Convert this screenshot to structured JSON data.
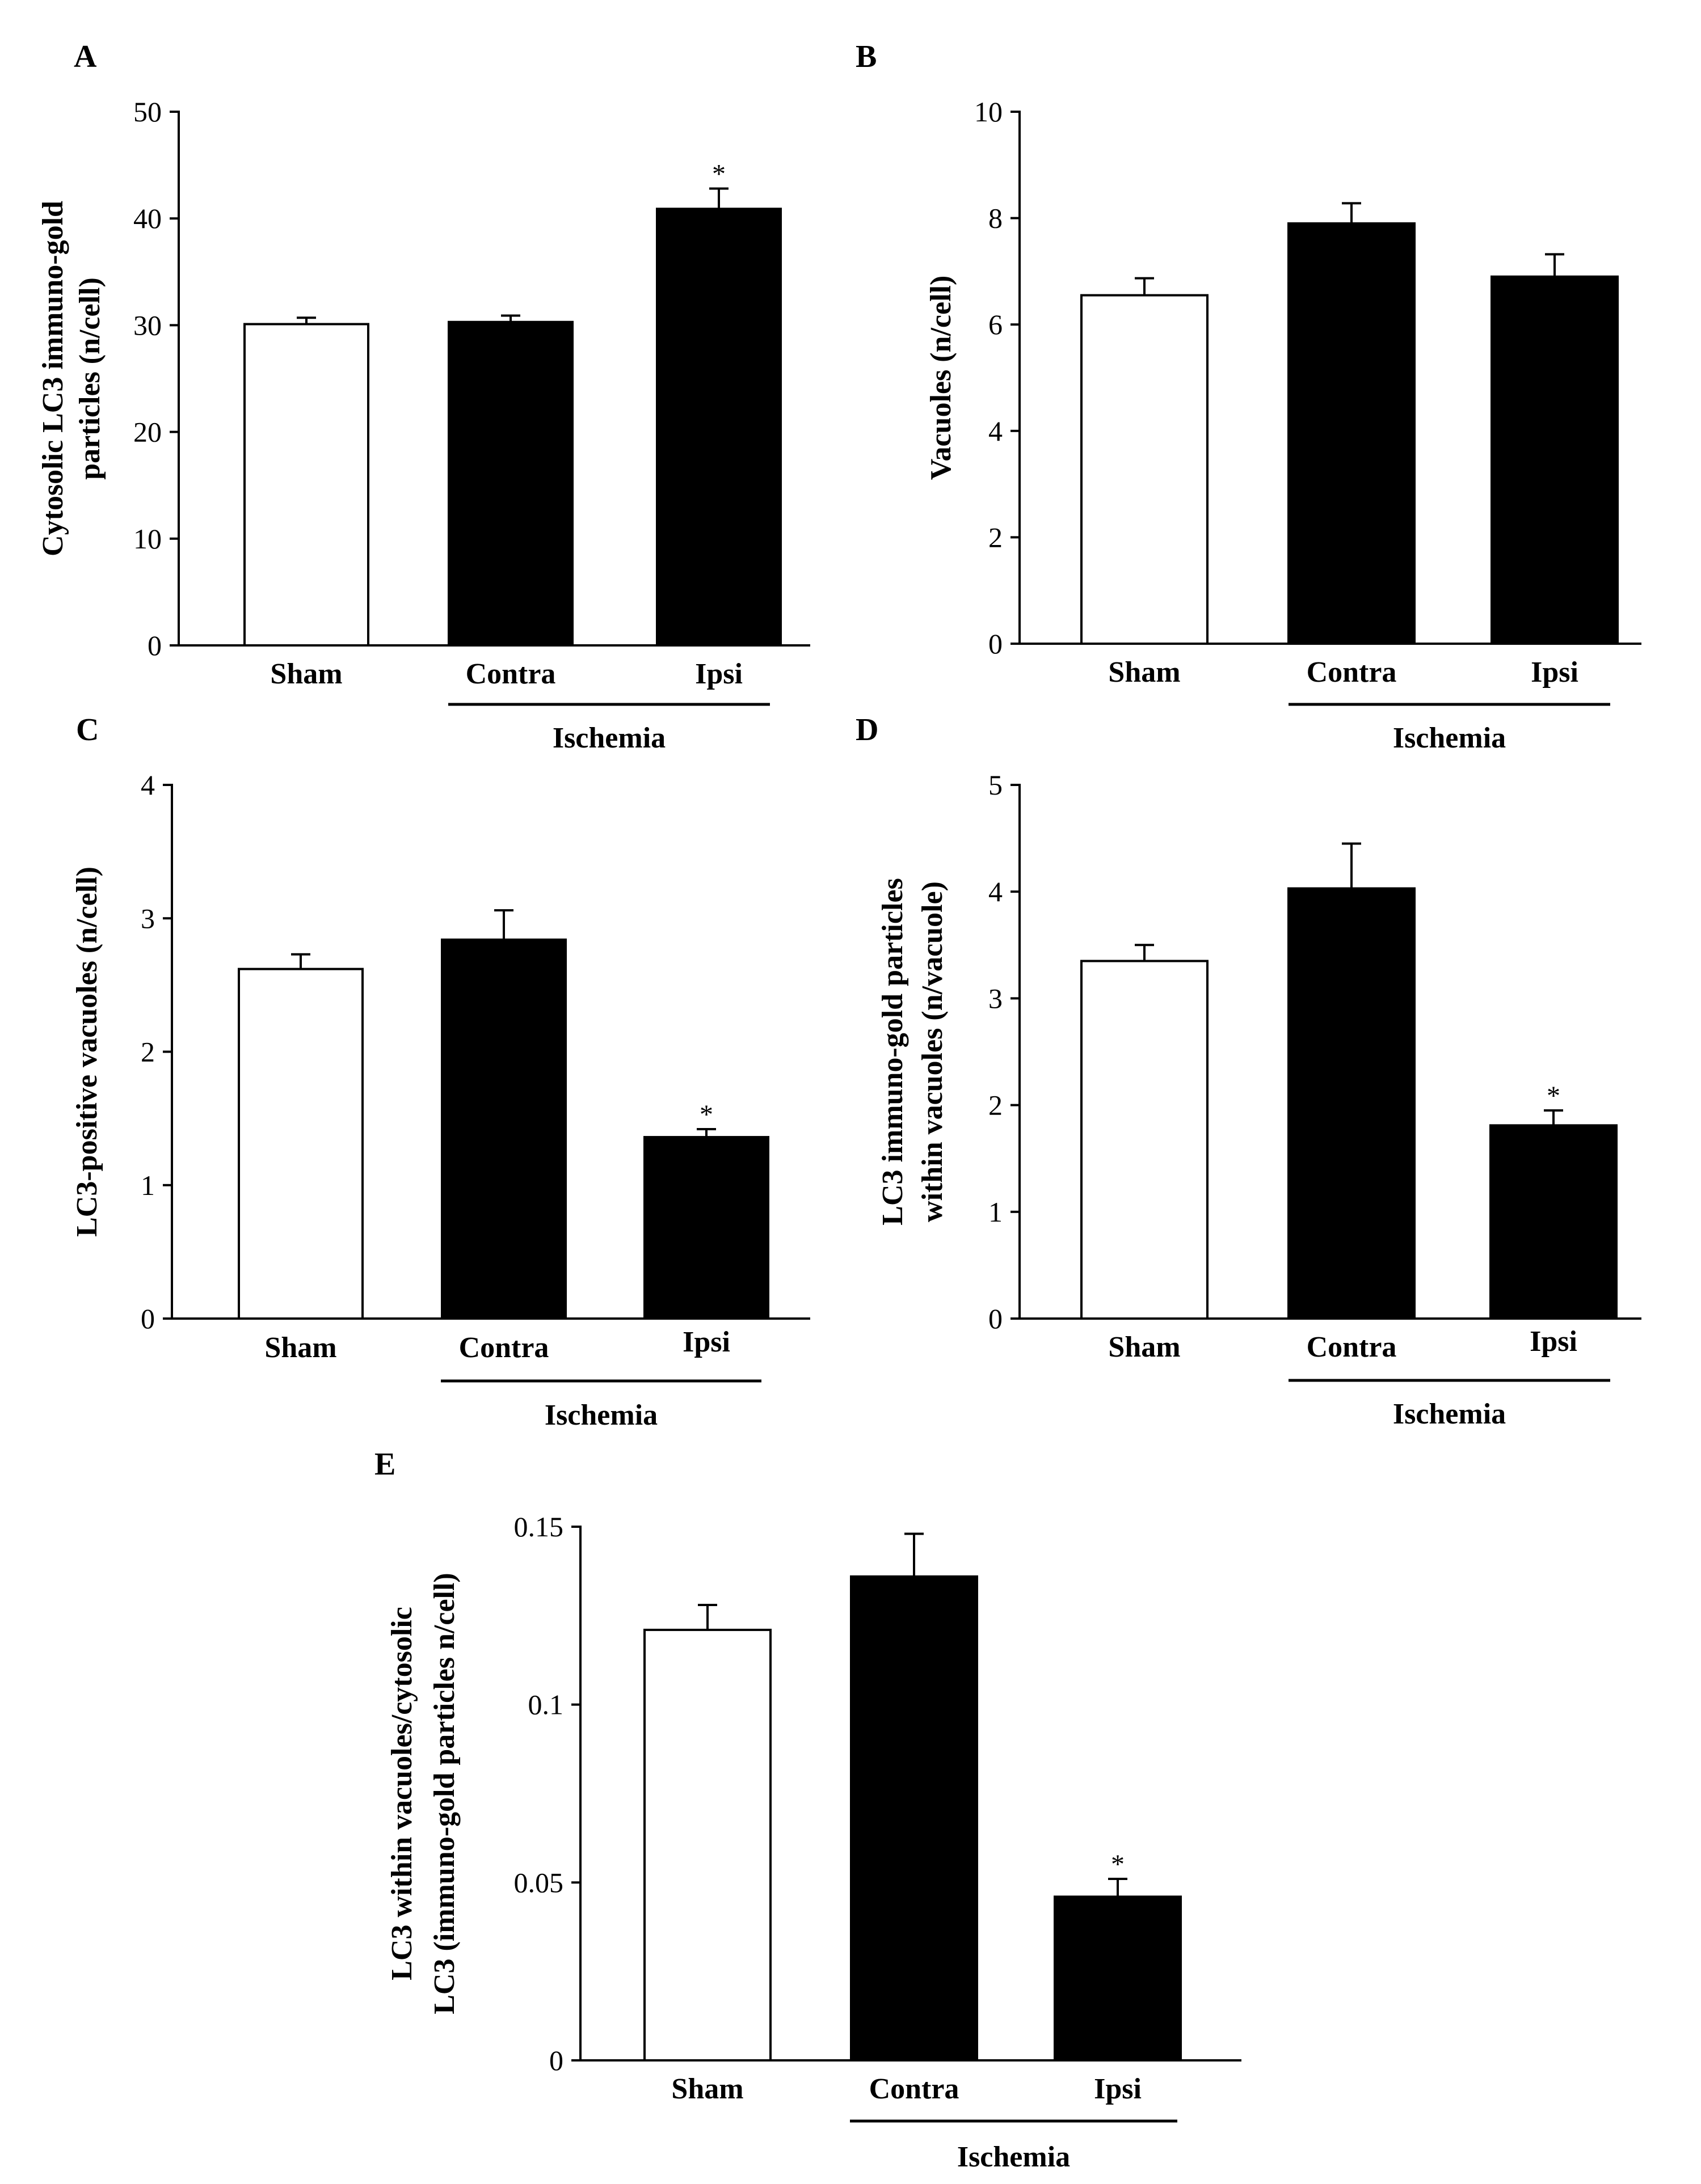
{
  "figure": {
    "colors": {
      "sham": "#ffffff",
      "ischemia": "#000000",
      "axis": "#000000"
    }
  },
  "chart_data": [
    {
      "id": "A",
      "panel_label": "A",
      "type": "bar",
      "categories": [
        "Sham",
        "Contra",
        "Ipsi"
      ],
      "values": [
        30.1,
        30.3,
        40.9
      ],
      "errors": [
        0.6,
        0.6,
        1.9
      ],
      "significance": [
        "",
        "",
        "*"
      ],
      "fill": [
        "#ffffff",
        "#000000",
        "#000000"
      ],
      "ylabel_lines": [
        "Cytosolic LC3 immuno-gold",
        "particles (n/cell)"
      ],
      "ylim": [
        0,
        50
      ],
      "yticks": [
        0,
        10,
        20,
        30,
        40,
        50
      ],
      "ytick_labels": [
        "0",
        "10",
        "20",
        "30",
        "40",
        "50"
      ],
      "group_label": "Ischemia",
      "grid": false
    },
    {
      "id": "B",
      "panel_label": "B",
      "type": "bar",
      "categories": [
        "Sham",
        "Contra",
        "Ipsi"
      ],
      "values": [
        6.55,
        7.9,
        6.9
      ],
      "errors": [
        0.32,
        0.38,
        0.42
      ],
      "significance": [
        "",
        "",
        ""
      ],
      "fill": [
        "#ffffff",
        "#000000",
        "#000000"
      ],
      "ylabel_lines": [
        "Vacuoles (n/cell)"
      ],
      "ylim": [
        0,
        10
      ],
      "yticks": [
        0,
        2,
        4,
        6,
        8,
        10
      ],
      "ytick_labels": [
        "0",
        "2",
        "4",
        "6",
        "8",
        "10"
      ],
      "group_label": "Ischemia",
      "grid": false
    },
    {
      "id": "C",
      "panel_label": "C",
      "type": "bar",
      "categories": [
        "Sham",
        "Contra",
        "Ipsi"
      ],
      "values": [
        2.62,
        2.84,
        1.36
      ],
      "errors": [
        0.11,
        0.22,
        0.06
      ],
      "significance": [
        "",
        "",
        "*"
      ],
      "fill": [
        "#ffffff",
        "#000000",
        "#000000"
      ],
      "ylabel_lines": [
        "LC3-positive vacuoles (n/cell)"
      ],
      "ylim": [
        0,
        4
      ],
      "yticks": [
        0,
        1,
        2,
        3,
        4
      ],
      "ytick_labels": [
        "0",
        "1",
        "2",
        "3",
        "4"
      ],
      "group_label": "Ischemia",
      "grid": false
    },
    {
      "id": "D",
      "panel_label": "D",
      "type": "bar",
      "categories": [
        "Sham",
        "Contra",
        "Ipsi"
      ],
      "values": [
        3.35,
        4.03,
        1.81
      ],
      "errors": [
        0.15,
        0.42,
        0.14
      ],
      "significance": [
        "",
        "",
        "*"
      ],
      "fill": [
        "#ffffff",
        "#000000",
        "#000000"
      ],
      "ylabel_lines": [
        "LC3 immuno-gold particles",
        "within vacuoles (n/vacuole)"
      ],
      "ylim": [
        0,
        5
      ],
      "yticks": [
        0,
        1,
        2,
        3,
        4,
        5
      ],
      "ytick_labels": [
        "0",
        "1",
        "2",
        "3",
        "4",
        "5"
      ],
      "group_label": "Ischemia",
      "grid": false
    },
    {
      "id": "E",
      "panel_label": "E",
      "type": "bar",
      "categories": [
        "Sham",
        "Contra",
        "Ipsi"
      ],
      "values": [
        0.121,
        0.136,
        0.046
      ],
      "errors": [
        0.007,
        0.012,
        0.005
      ],
      "significance": [
        "",
        "",
        "*"
      ],
      "fill": [
        "#ffffff",
        "#000000",
        "#000000"
      ],
      "ylabel_lines": [
        "LC3  within vacuoles/cytosolic",
        "LC3 (immuno-gold particles n/cell)"
      ],
      "ylim": [
        0,
        0.15
      ],
      "yticks": [
        0,
        0.05,
        0.1,
        0.15
      ],
      "ytick_labels": [
        "0",
        "0.05",
        "0.1",
        "0.15"
      ],
      "group_label": "Ischemia",
      "grid": false
    }
  ]
}
